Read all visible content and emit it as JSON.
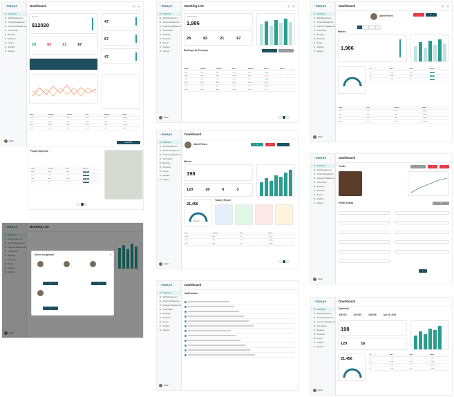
{
  "brand": {
    "logo": "Swayo",
    "accent": "#2a9d8f",
    "dark": "#1f4e5f",
    "danger": "#e63946"
  },
  "nav": [
    "Dashboard",
    "Staff Management",
    "Vendor Management",
    "Customer Management",
    "Travel Mode",
    "Bookings",
    "Payments",
    "Payout",
    "Analytics",
    "Settings"
  ],
  "user": {
    "name": "Admin"
  },
  "screens": {
    "s1": {
      "title": "Dashboard",
      "revenue_label": "Revenue",
      "revenue": "$12020",
      "stat_a": "47",
      "stat_b": "67",
      "stat_c": "47",
      "kpis": [
        "28",
        "82",
        "21",
        "67"
      ],
      "section_pickup": "Pickup Requests",
      "cta": "View More"
    },
    "s2": {
      "title": "Booking List",
      "total_label": "Total Bookings",
      "total": "1,986",
      "kpis": [
        "28",
        "82",
        "21",
        "67"
      ],
      "section": "Booking List (Pickups)",
      "cols": [
        "Name",
        "Number",
        "Service",
        "Date",
        "Address",
        "Status",
        "Action"
      ]
    },
    "s3": {
      "title": "Dashboard",
      "profile_name": "Albert Flores",
      "total": "1,986",
      "section": "Metrics"
    },
    "s4": {
      "title": "Booking List",
      "modal_title": "Driver Assignment"
    },
    "s5": {
      "title": "Dashboard",
      "profile_name": "Albert Flores",
      "section": "Metrics",
      "total": "198",
      "kpis": [
        "120",
        "16",
        "6",
        "3"
      ],
      "earnings": "21,456",
      "today": "Today's Report",
      "gauge": "$27123"
    },
    "s6": {
      "title": "Dashboard",
      "profile": "Profile",
      "form": "Profile Details"
    },
    "s7": {
      "title": "Dashboard",
      "section": "Notifications"
    },
    "s8": {
      "title": "Dashboard",
      "section": "Payments",
      "totals": [
        "429,000",
        "429,000",
        "429,000",
        "Apr 05, 2021"
      ],
      "total": "198",
      "kpis": [
        "120",
        "16"
      ],
      "earnings": "21,456"
    }
  }
}
